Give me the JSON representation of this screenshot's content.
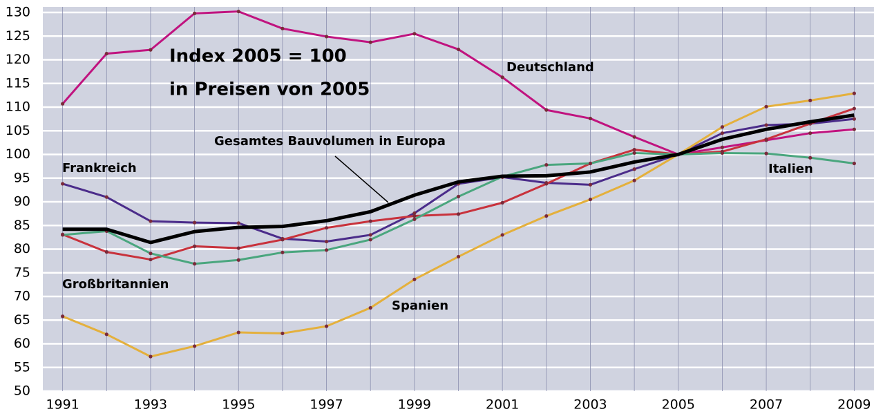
{
  "chart_data": {
    "type": "line",
    "annotations": [
      "Index 2005 = 100",
      "in Preisen von 2005"
    ],
    "x": [
      1991,
      1992,
      1993,
      1994,
      1995,
      1996,
      1997,
      1998,
      1999,
      2000,
      2001,
      2002,
      2003,
      2004,
      2005,
      2006,
      2007,
      2008,
      2009
    ],
    "xlim": [
      1990.55,
      2009.45
    ],
    "xticks": [
      1991,
      1993,
      1995,
      1997,
      1999,
      2001,
      2003,
      2005,
      2007,
      2009
    ],
    "ylim": [
      50,
      130
    ],
    "yticks": [
      50,
      55,
      60,
      65,
      70,
      75,
      80,
      85,
      90,
      95,
      100,
      105,
      110,
      115,
      120,
      125,
      130
    ],
    "grid": true,
    "series": [
      {
        "name": "Deutschland",
        "color": "#c0137f",
        "markers": true,
        "values": [
          110.7,
          121.3,
          122.1,
          129.8,
          130.2,
          126.6,
          124.9,
          123.7,
          125.5,
          122.2,
          116.3,
          109.4,
          107.6,
          103.7,
          100,
          101.5,
          103.0,
          104.5,
          105.3
        ]
      },
      {
        "name": "Frankreich",
        "color": "#4b2c8a",
        "markers": true,
        "values": [
          93.8,
          91.0,
          85.9,
          85.6,
          85.5,
          82.2,
          81.6,
          83.0,
          87.6,
          93.8,
          95.2,
          94.0,
          93.6,
          96.9,
          100,
          104.5,
          106.2,
          106.5,
          107.5
        ]
      },
      {
        "name": "Großbritannien",
        "color": "#c8323c",
        "markers": true,
        "values": [
          83.1,
          79.4,
          77.8,
          80.6,
          80.2,
          82.0,
          84.5,
          85.9,
          87.0,
          87.4,
          89.8,
          93.8,
          98.1,
          101.0,
          100,
          100.6,
          103.2,
          106.5,
          109.7
        ]
      },
      {
        "name": "Italien",
        "color": "#4aa67e",
        "markers": true,
        "values": [
          83.0,
          83.8,
          79.1,
          76.9,
          77.7,
          79.3,
          79.8,
          82.0,
          86.3,
          91.1,
          95.3,
          97.8,
          98.1,
          100.3,
          100,
          100.3,
          100.2,
          99.3,
          98.1
        ]
      },
      {
        "name": "Spanien",
        "color": "#e4b03c",
        "markers": true,
        "values": [
          65.8,
          62.0,
          57.3,
          59.5,
          62.4,
          62.2,
          63.7,
          67.6,
          73.6,
          78.4,
          83.0,
          87.0,
          90.5,
          94.5,
          100,
          105.8,
          110.1,
          111.4,
          112.9
        ]
      },
      {
        "name": "Gesamtes Bauvolumen in Europa",
        "color": "#000000",
        "markers": false,
        "values": [
          84.2,
          84.2,
          81.4,
          83.7,
          84.6,
          84.8,
          86.0,
          87.9,
          91.4,
          94.2,
          95.4,
          95.5,
          96.3,
          98.4,
          100,
          103.2,
          105.3,
          106.9,
          108.3
        ]
      }
    ]
  }
}
